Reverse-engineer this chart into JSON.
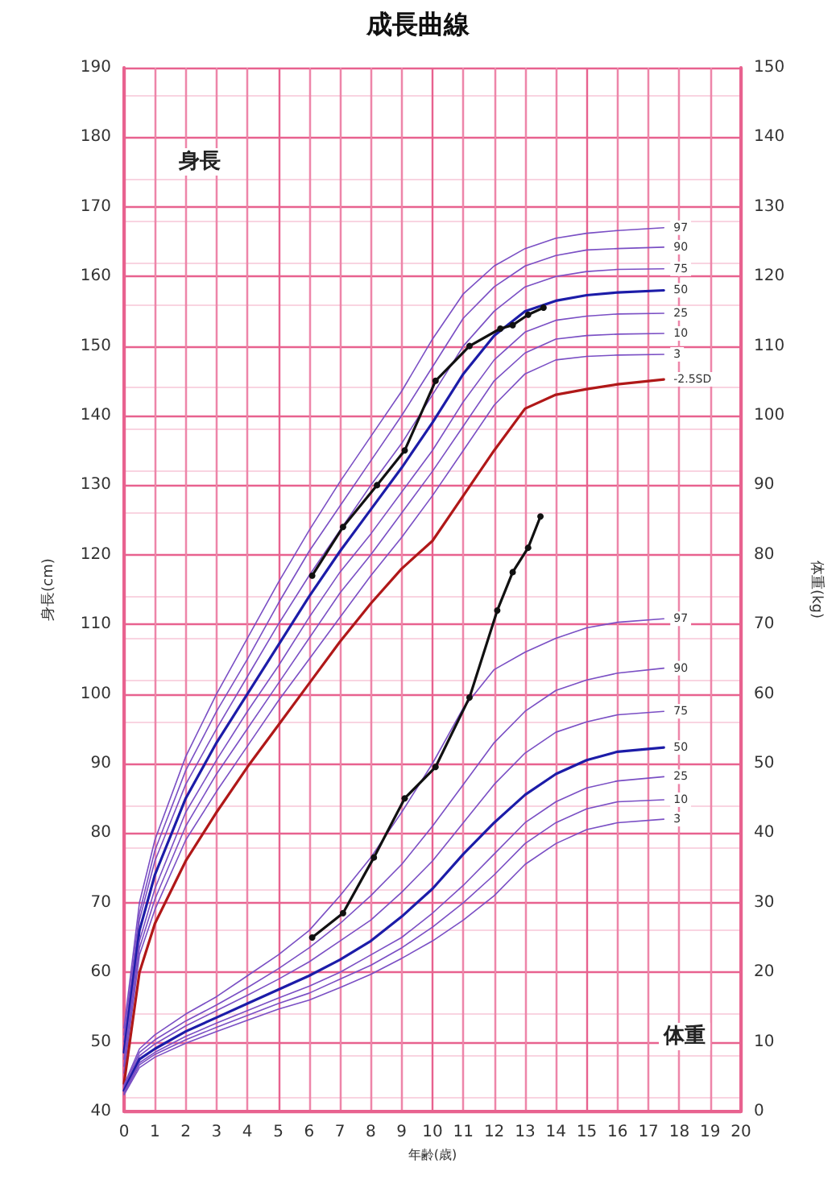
{
  "chart_data": {
    "type": "line",
    "title": "成長曲線",
    "xlabel": "年齢(歳)",
    "ylabel": "身長(cm)",
    "y2label": "体重(kg)",
    "annotations": [
      "身長",
      "体重"
    ],
    "xlim": [
      0,
      20
    ],
    "xticks": [
      0,
      1,
      2,
      3,
      4,
      5,
      6,
      7,
      8,
      9,
      10,
      11,
      12,
      13,
      14,
      15,
      16,
      17,
      18,
      19,
      20
    ],
    "ylim": [
      40,
      190
    ],
    "yticks": [
      40,
      50,
      60,
      70,
      80,
      90,
      100,
      110,
      120,
      130,
      140,
      150,
      160,
      170,
      180,
      190
    ],
    "y2lim": [
      0,
      150
    ],
    "y2ticks": [
      0,
      10,
      20,
      30,
      40,
      50,
      60,
      70,
      80,
      90,
      100,
      110,
      120,
      130,
      140,
      150
    ],
    "grid": true,
    "legend": false,
    "marker": "none",
    "series": [
      {
        "name": "97",
        "color": "#7a4fc4",
        "x": [
          0,
          0.5,
          1,
          2,
          3,
          4,
          5,
          6,
          7,
          8,
          9,
          10,
          11,
          12,
          13,
          14,
          15,
          16,
          17.5
        ],
        "values": [
          52,
          70,
          79,
          91,
          100,
          108,
          116,
          123.5,
          130.5,
          137,
          143.5,
          151,
          157.5,
          161.5,
          164,
          165.5,
          166.2,
          166.6,
          167
        ]
      },
      {
        "name": "90",
        "color": "#7a4fc4",
        "x": [
          0,
          0.5,
          1,
          2,
          3,
          4,
          5,
          6,
          7,
          8,
          9,
          10,
          11,
          12,
          13,
          14,
          15,
          16,
          17.5
        ],
        "values": [
          51,
          68.5,
          77.5,
          89,
          97.5,
          105,
          113,
          120.5,
          127,
          133.5,
          140,
          147,
          154,
          158.5,
          161.5,
          163,
          163.8,
          164,
          164.2
        ]
      },
      {
        "name": "75",
        "color": "#7a4fc4",
        "x": [
          0,
          0.5,
          1,
          2,
          3,
          4,
          5,
          6,
          7,
          8,
          9,
          10,
          11,
          12,
          13,
          14,
          15,
          16,
          17.5
        ],
        "values": [
          50,
          67.5,
          76,
          87,
          95,
          102.5,
          110,
          117,
          123.5,
          130,
          136,
          143,
          150,
          155,
          158.5,
          160,
          160.7,
          161,
          161.1
        ]
      },
      {
        "name": "50",
        "color": "#1c1ca8",
        "x": [
          0,
          0.5,
          1,
          2,
          3,
          4,
          5,
          6,
          7,
          8,
          9,
          10,
          11,
          12,
          13,
          14,
          15,
          16,
          17.5
        ],
        "values": [
          48.5,
          66,
          74,
          85,
          93,
          100,
          107,
          114,
          120.5,
          126.5,
          132.5,
          139,
          146,
          151.5,
          155,
          156.5,
          157.3,
          157.7,
          158
        ]
      },
      {
        "name": "25",
        "color": "#7a4fc4",
        "x": [
          0,
          0.5,
          1,
          2,
          3,
          4,
          5,
          6,
          7,
          8,
          9,
          10,
          11,
          12,
          13,
          14,
          15,
          16,
          17.5
        ],
        "values": [
          47.5,
          64.5,
          72,
          83,
          90.5,
          97.5,
          104,
          111,
          117.5,
          123,
          129,
          135,
          142,
          148,
          152,
          153.7,
          154.3,
          154.6,
          154.7
        ]
      },
      {
        "name": "10",
        "color": "#7a4fc4",
        "x": [
          0,
          0.5,
          1,
          2,
          3,
          4,
          5,
          6,
          7,
          8,
          9,
          10,
          11,
          12,
          13,
          14,
          15,
          16,
          17.5
        ],
        "values": [
          46.5,
          63.5,
          70.5,
          81,
          88.5,
          95,
          101.5,
          108,
          114.5,
          120,
          126,
          132,
          138.5,
          145,
          149,
          151,
          151.5,
          151.7,
          151.8
        ]
      },
      {
        "name": "3",
        "color": "#7a4fc4",
        "x": [
          0,
          0.5,
          1,
          2,
          3,
          4,
          5,
          6,
          7,
          8,
          9,
          10,
          11,
          12,
          13,
          14,
          15,
          16,
          17.5
        ],
        "values": [
          45.5,
          62.5,
          69,
          79,
          86,
          92.5,
          99,
          105,
          111,
          117,
          122.5,
          128.5,
          135,
          141.5,
          146,
          148,
          148.5,
          148.7,
          148.8
        ]
      },
      {
        "name": "-2.5SD",
        "color": "#b01818",
        "x": [
          0,
          0.5,
          1,
          2,
          3,
          4,
          5,
          6,
          7,
          8,
          9,
          10,
          11,
          12,
          13,
          14,
          15,
          16,
          17.5
        ],
        "values": [
          44,
          60,
          67,
          76,
          83,
          89.5,
          95.5,
          101.5,
          107.5,
          113,
          118,
          122,
          128.5,
          135,
          141,
          143,
          143.8,
          144.5,
          145.2
        ]
      },
      {
        "color": "#111111",
        "marker": "circle",
        "x": [
          6.1,
          7.1,
          8.2,
          9.1,
          10.1,
          11.2,
          12.2,
          12.6,
          13.1,
          13.6
        ],
        "values": [
          117,
          124,
          130,
          135,
          145,
          150,
          152.5,
          153,
          154.5,
          155.5
        ]
      },
      {
        "name": "97",
        "axis": "y2",
        "color": "#7a4fc4",
        "x": [
          0,
          0.5,
          1,
          2,
          3,
          4,
          5,
          6,
          7,
          8,
          9,
          10,
          11,
          12,
          13,
          14,
          15,
          16,
          17.5
        ],
        "values": [
          3.8,
          9,
          11,
          14,
          16.5,
          19.5,
          22.5,
          26,
          31,
          36.5,
          43,
          50,
          58,
          63.5,
          66,
          68,
          69.5,
          70.3,
          70.8
        ]
      },
      {
        "name": "90",
        "axis": "y2",
        "color": "#7a4fc4",
        "x": [
          0,
          0.5,
          1,
          2,
          3,
          4,
          5,
          6,
          7,
          8,
          9,
          10,
          11,
          12,
          13,
          14,
          15,
          16,
          17.5
        ],
        "values": [
          3.5,
          8.5,
          10.3,
          13,
          15.3,
          17.8,
          20.5,
          23.5,
          27,
          31,
          35.5,
          41,
          47,
          53,
          57.5,
          60.5,
          62,
          63,
          63.7
        ]
      },
      {
        "name": "75",
        "axis": "y2",
        "color": "#7a4fc4",
        "x": [
          0,
          0.5,
          1,
          2,
          3,
          4,
          5,
          6,
          7,
          8,
          9,
          10,
          11,
          12,
          13,
          14,
          15,
          16,
          17.5
        ],
        "values": [
          3.3,
          8,
          9.7,
          12.3,
          14.5,
          16.7,
          19,
          21.5,
          24.5,
          27.5,
          31.5,
          36,
          41.5,
          47,
          51.5,
          54.5,
          56,
          57,
          57.5
        ]
      },
      {
        "name": "50",
        "axis": "y2",
        "color": "#1c1ca8",
        "x": [
          0,
          0.5,
          1,
          2,
          3,
          4,
          5,
          6,
          7,
          8,
          9,
          10,
          11,
          12,
          13,
          14,
          15,
          16,
          17.5
        ],
        "values": [
          3,
          7.5,
          9,
          11.5,
          13.5,
          15.5,
          17.5,
          19.5,
          21.8,
          24.5,
          28,
          32,
          37,
          41.5,
          45.5,
          48.5,
          50.5,
          51.7,
          52.3
        ]
      },
      {
        "name": "25",
        "axis": "y2",
        "color": "#7a4fc4",
        "x": [
          0,
          0.5,
          1,
          2,
          3,
          4,
          5,
          6,
          7,
          8,
          9,
          10,
          11,
          12,
          13,
          14,
          15,
          16,
          17.5
        ],
        "values": [
          2.8,
          7,
          8.5,
          10.8,
          12.7,
          14.5,
          16.3,
          18,
          20,
          22.5,
          25,
          28.5,
          32.5,
          37,
          41.5,
          44.5,
          46.5,
          47.5,
          48.1
        ]
      },
      {
        "name": "10",
        "axis": "y2",
        "color": "#7a4fc4",
        "x": [
          0,
          0.5,
          1,
          2,
          3,
          4,
          5,
          6,
          7,
          8,
          9,
          10,
          11,
          12,
          13,
          14,
          15,
          16,
          17.5
        ],
        "values": [
          2.6,
          6.7,
          8.2,
          10.3,
          12.1,
          13.8,
          15.5,
          17,
          19,
          21,
          23.5,
          26.5,
          30,
          34,
          38.5,
          41.5,
          43.5,
          44.5,
          44.8
        ]
      },
      {
        "name": "3",
        "axis": "y2",
        "color": "#7a4fc4",
        "x": [
          0,
          0.5,
          1,
          2,
          3,
          4,
          5,
          6,
          7,
          8,
          9,
          10,
          11,
          12,
          13,
          14,
          15,
          16,
          17.5
        ],
        "values": [
          2.4,
          6.3,
          7.8,
          9.8,
          11.5,
          13.1,
          14.7,
          16,
          17.8,
          19.7,
          22,
          24.5,
          27.5,
          31,
          35.5,
          38.5,
          40.5,
          41.5,
          42
        ]
      },
      {
        "axis": "y2",
        "color": "#111111",
        "marker": "circle",
        "x": [
          6.1,
          7.1,
          8.1,
          9.1,
          10.1,
          11.2,
          12.1,
          12.6,
          13.1,
          13.5
        ],
        "values": [
          25,
          28.5,
          36.5,
          45,
          49.5,
          59.5,
          72,
          77.5,
          81,
          85.5
        ]
      }
    ]
  }
}
